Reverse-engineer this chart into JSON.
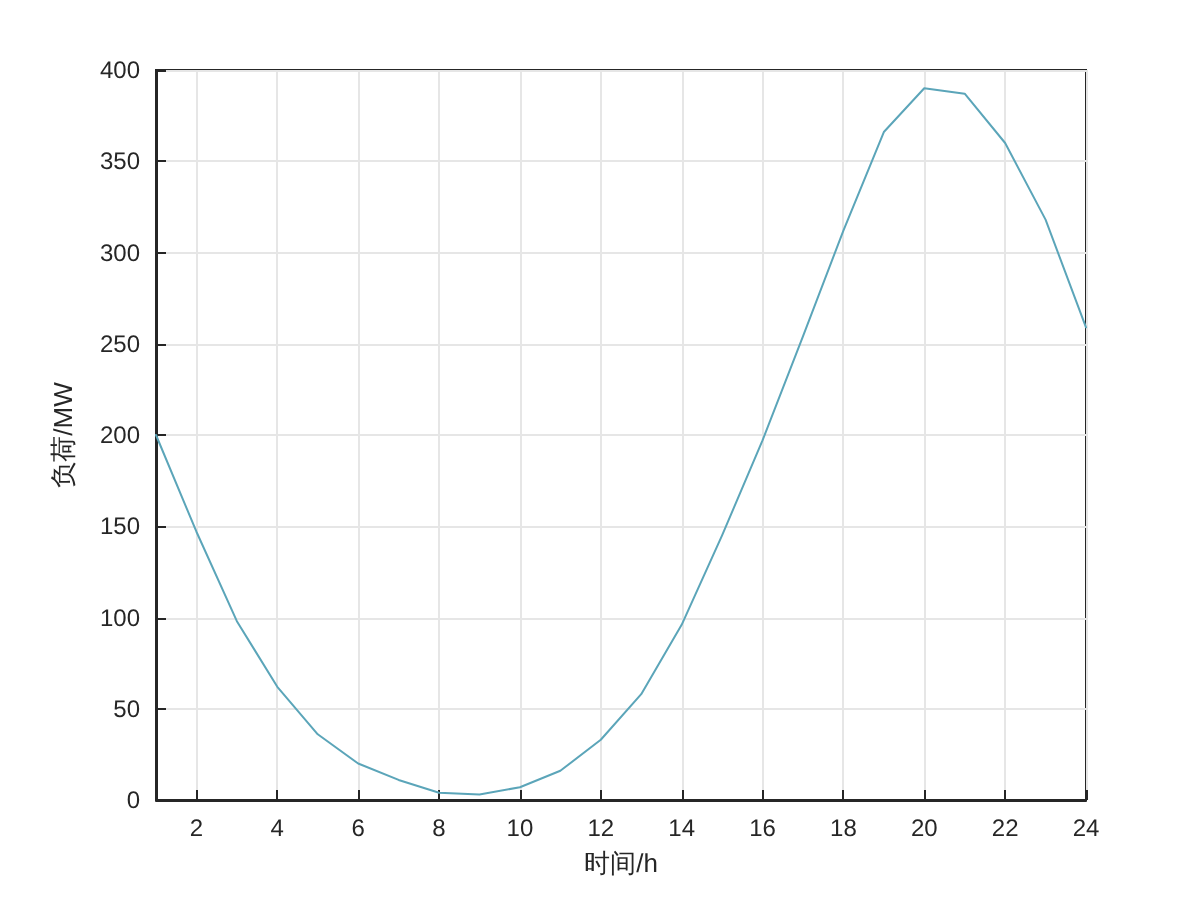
{
  "chart_data": {
    "type": "line",
    "xlabel": "时间/h",
    "ylabel": "负荷/MW",
    "x": [
      1,
      2,
      3,
      4,
      5,
      6,
      7,
      8,
      9,
      10,
      11,
      12,
      13,
      14,
      15,
      16,
      17,
      18,
      19,
      20,
      21,
      22,
      23,
      24
    ],
    "series": [
      {
        "color": "#5ba5b9",
        "values": [
          200,
          147,
          98,
          62,
          36,
          20,
          11,
          4,
          3,
          7,
          16,
          33,
          58,
          96,
          145,
          197,
          254,
          312,
          366,
          390,
          387,
          360,
          318,
          259
        ]
      }
    ],
    "xlim": [
      1,
      24
    ],
    "xticks": [
      2,
      4,
      6,
      8,
      10,
      12,
      14,
      16,
      18,
      20,
      22,
      24
    ],
    "ylim": [
      0,
      400
    ],
    "yticks": [
      0,
      50,
      100,
      150,
      200,
      250,
      300,
      350,
      400
    ],
    "grid": true,
    "marker": "none",
    "line_style": "solid"
  }
}
